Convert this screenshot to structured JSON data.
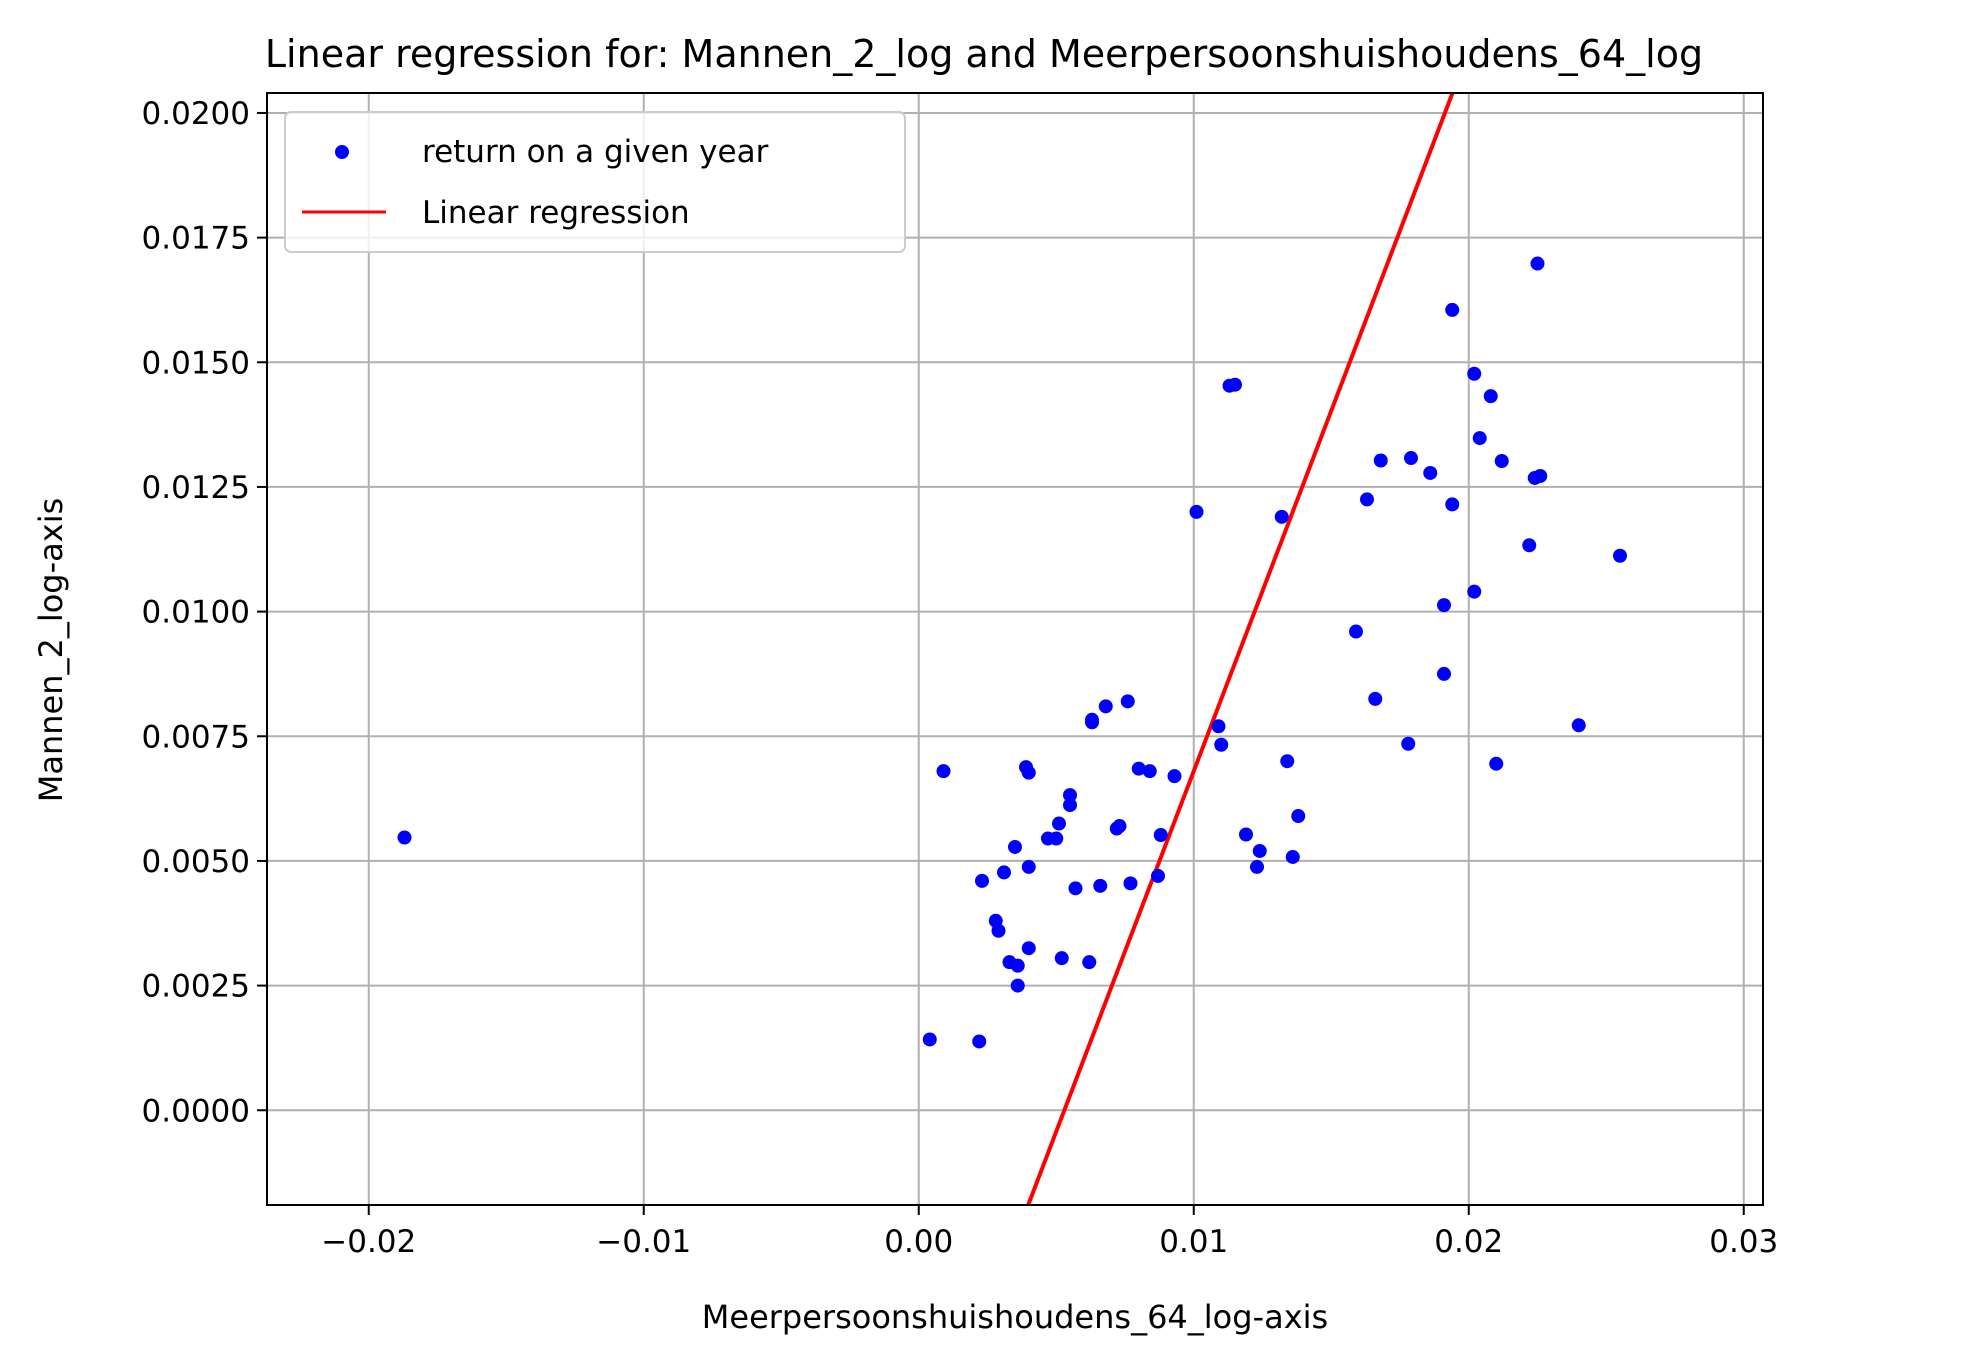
{
  "chart_data": {
    "type": "scatter",
    "title": "Linear regression for: Mannen_2_log and Meerpersoonshuishoudens_64_log",
    "xlabel": "Meerpersoonshuishoudens_64_log-axis",
    "ylabel": "Mannen_2_log-axis",
    "xlim": [
      -0.0237,
      0.0307
    ],
    "ylim": [
      -0.0019,
      0.0204
    ],
    "x_ticks": [
      -0.02,
      -0.01,
      0.0,
      0.01,
      0.02,
      0.03
    ],
    "x_tick_labels": [
      "−0.02",
      "−0.01",
      "0.00",
      "0.01",
      "0.02",
      "0.03"
    ],
    "y_ticks": [
      0.0,
      0.0025,
      0.005,
      0.0075,
      0.01,
      0.0125,
      0.015,
      0.0175,
      0.02
    ],
    "y_tick_labels": [
      "0.0000",
      "0.0025",
      "0.0050",
      "0.0075",
      "0.0100",
      "0.0125",
      "0.0150",
      "0.0175",
      "0.0200"
    ],
    "grid": true,
    "legend_position": "upper-left",
    "series": [
      {
        "name": "return on a given year",
        "kind": "scatter",
        "color": "#0000ff",
        "points": [
          [
            -0.0187,
            0.00547
          ],
          [
            0.0004,
            0.00142
          ],
          [
            0.0009,
            0.0068
          ],
          [
            0.0022,
            0.00138
          ],
          [
            0.0023,
            0.0046
          ],
          [
            0.0028,
            0.0038
          ],
          [
            0.0029,
            0.0036
          ],
          [
            0.0031,
            0.00477
          ],
          [
            0.0033,
            0.00297
          ],
          [
            0.0035,
            0.00528
          ],
          [
            0.0036,
            0.0025
          ],
          [
            0.0036,
            0.0029
          ],
          [
            0.0039,
            0.00688
          ],
          [
            0.004,
            0.00325
          ],
          [
            0.004,
            0.00488
          ],
          [
            0.004,
            0.00677
          ],
          [
            0.0047,
            0.00545
          ],
          [
            0.005,
            0.00545
          ],
          [
            0.0051,
            0.00575
          ],
          [
            0.0052,
            0.00305
          ],
          [
            0.0055,
            0.00632
          ],
          [
            0.0055,
            0.00612
          ],
          [
            0.0057,
            0.00445
          ],
          [
            0.0062,
            0.00297
          ],
          [
            0.0063,
            0.00778
          ],
          [
            0.0063,
            0.00783
          ],
          [
            0.0066,
            0.0045
          ],
          [
            0.0068,
            0.0081
          ],
          [
            0.0072,
            0.00565
          ],
          [
            0.0073,
            0.0057
          ],
          [
            0.0076,
            0.0082
          ],
          [
            0.0077,
            0.00455
          ],
          [
            0.008,
            0.00685
          ],
          [
            0.0084,
            0.0068
          ],
          [
            0.0087,
            0.0047
          ],
          [
            0.0088,
            0.00552
          ],
          [
            0.0093,
            0.0067
          ],
          [
            0.0101,
            0.012
          ],
          [
            0.0109,
            0.0077
          ],
          [
            0.011,
            0.00733
          ],
          [
            0.0113,
            0.01453
          ],
          [
            0.0115,
            0.01455
          ],
          [
            0.0119,
            0.00553
          ],
          [
            0.0123,
            0.00488
          ],
          [
            0.0124,
            0.0052
          ],
          [
            0.0132,
            0.0119
          ],
          [
            0.0134,
            0.007
          ],
          [
            0.0136,
            0.00508
          ],
          [
            0.0138,
            0.0059
          ],
          [
            0.0159,
            0.0096
          ],
          [
            0.0163,
            0.01225
          ],
          [
            0.0166,
            0.00825
          ],
          [
            0.0168,
            0.01303
          ],
          [
            0.0178,
            0.00735
          ],
          [
            0.0179,
            0.01308
          ],
          [
            0.0186,
            0.01278
          ],
          [
            0.0191,
            0.01013
          ],
          [
            0.0191,
            0.00875
          ],
          [
            0.0194,
            0.01605
          ],
          [
            0.0194,
            0.01215
          ],
          [
            0.0202,
            0.01477
          ],
          [
            0.0202,
            0.0104
          ],
          [
            0.0204,
            0.01348
          ],
          [
            0.0208,
            0.01432
          ],
          [
            0.021,
            0.00695
          ],
          [
            0.0212,
            0.01302
          ],
          [
            0.0222,
            0.01133
          ],
          [
            0.0224,
            0.01268
          ],
          [
            0.0225,
            0.01698
          ],
          [
            0.0226,
            0.01272
          ],
          [
            0.024,
            0.00772
          ],
          [
            0.0255,
            0.01112
          ]
        ]
      },
      {
        "name": "Linear regression",
        "kind": "line",
        "color": "#ff0000",
        "x": [
          0.00398,
          0.01941
        ],
        "y": [
          -0.0019,
          0.0204
        ]
      }
    ]
  }
}
